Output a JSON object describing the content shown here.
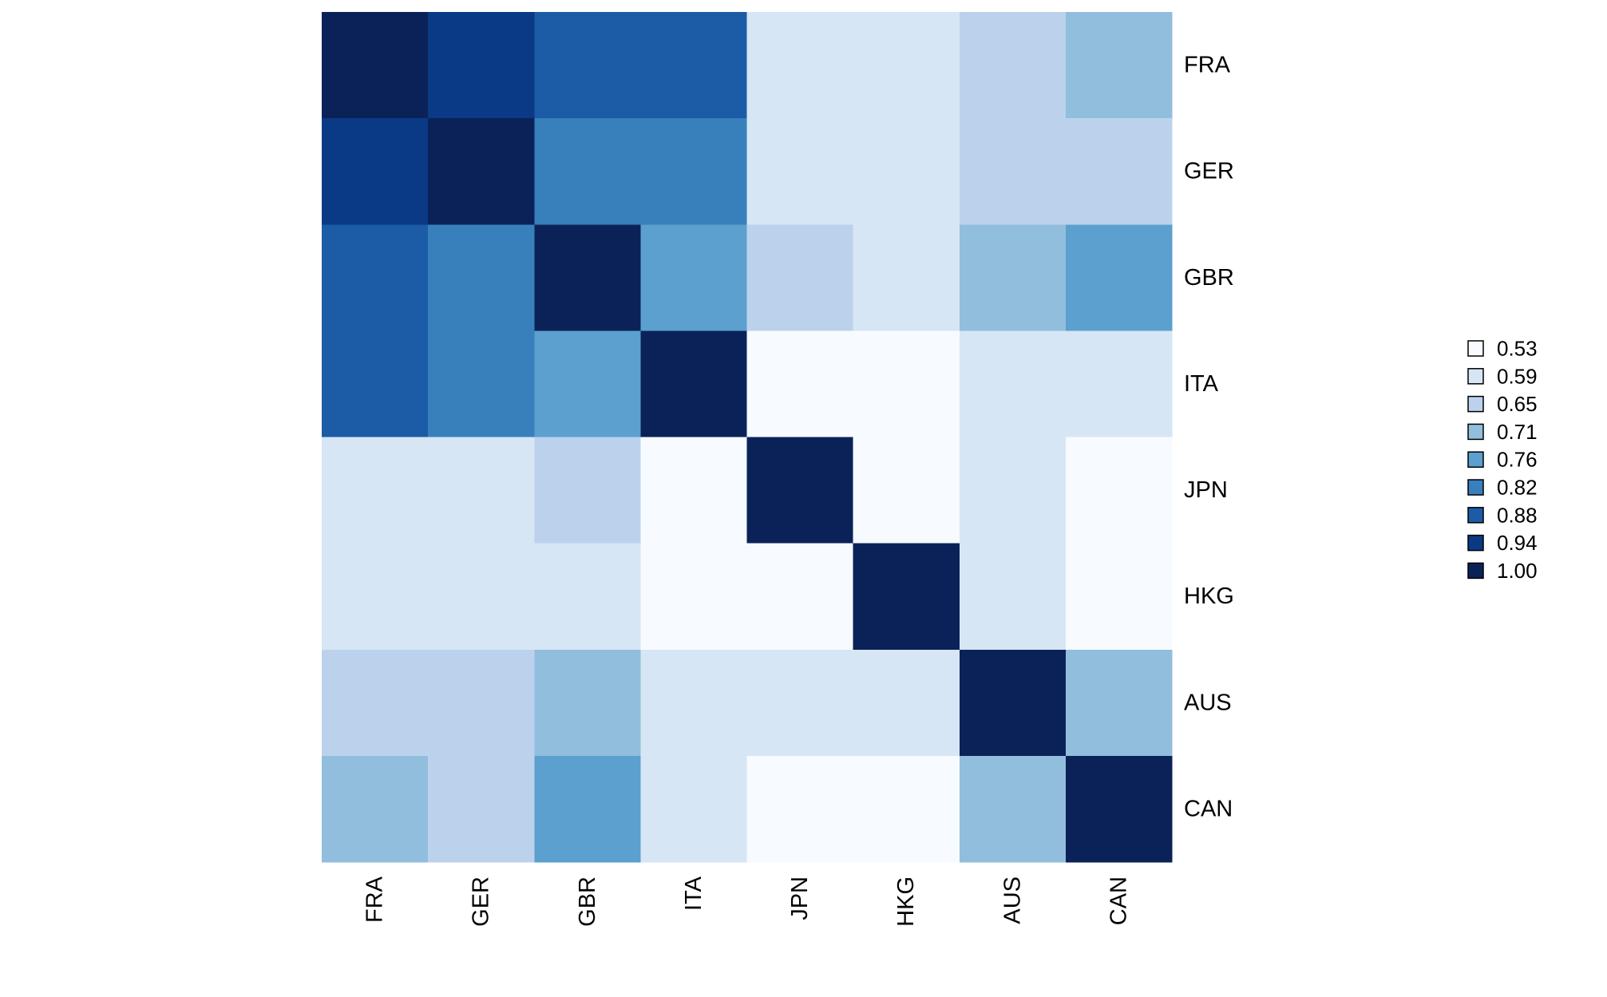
{
  "chart_data": {
    "type": "heatmap",
    "title": "",
    "xlabel": "",
    "ylabel": "",
    "rows": [
      "FRA",
      "GER",
      "GBR",
      "ITA",
      "JPN",
      "HKG",
      "AUS",
      "CAN"
    ],
    "columns": [
      "FRA",
      "GER",
      "GBR",
      "ITA",
      "JPN",
      "HKG",
      "AUS",
      "CAN"
    ],
    "values": [
      [
        1.0,
        0.94,
        0.88,
        0.88,
        0.59,
        0.59,
        0.65,
        0.71
      ],
      [
        0.94,
        1.0,
        0.82,
        0.82,
        0.59,
        0.59,
        0.65,
        0.65
      ],
      [
        0.88,
        0.82,
        1.0,
        0.76,
        0.65,
        0.59,
        0.71,
        0.76
      ],
      [
        0.88,
        0.82,
        0.76,
        1.0,
        0.53,
        0.53,
        0.59,
        0.59
      ],
      [
        0.59,
        0.59,
        0.65,
        0.53,
        1.0,
        0.53,
        0.59,
        0.53
      ],
      [
        0.59,
        0.59,
        0.59,
        0.53,
        0.53,
        1.0,
        0.59,
        0.53
      ],
      [
        0.65,
        0.65,
        0.71,
        0.59,
        0.59,
        0.59,
        1.0,
        0.71
      ],
      [
        0.71,
        0.65,
        0.76,
        0.59,
        0.53,
        0.53,
        0.71,
        1.0
      ]
    ],
    "legend": {
      "position": "right",
      "entries": [
        {
          "label": "0.53",
          "value": 0.53,
          "color": "#f7fbff"
        },
        {
          "label": "0.59",
          "value": 0.59,
          "color": "#d6e6f5"
        },
        {
          "label": "0.65",
          "value": 0.65,
          "color": "#bcd2ec"
        },
        {
          "label": "0.71",
          "value": 0.71,
          "color": "#91bedc"
        },
        {
          "label": "0.76",
          "value": 0.76,
          "color": "#5ba0ce"
        },
        {
          "label": "0.82",
          "value": 0.82,
          "color": "#3880bc"
        },
        {
          "label": "0.88",
          "value": 0.88,
          "color": "#1c5ba5"
        },
        {
          "label": "0.94",
          "value": 0.94,
          "color": "#0a3986"
        },
        {
          "label": "1.00",
          "value": 1.0,
          "color": "#0b2258"
        }
      ]
    },
    "grid": false
  }
}
